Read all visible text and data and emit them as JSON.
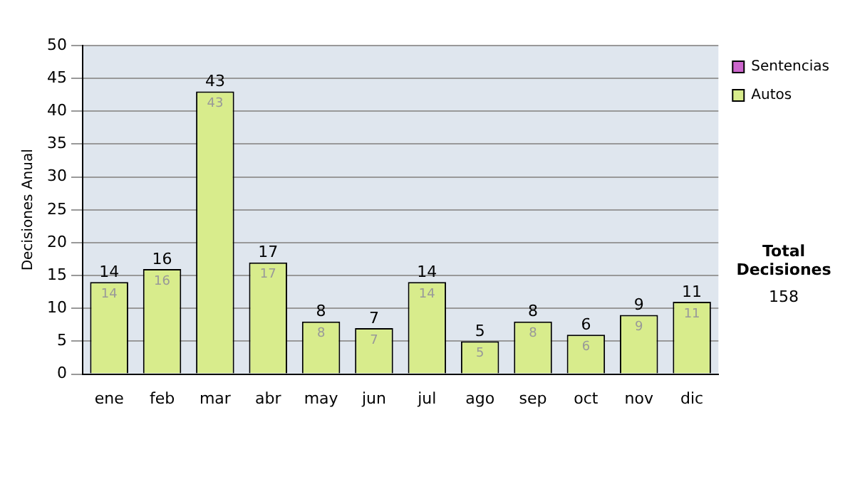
{
  "chart_data": {
    "type": "bar",
    "ylabel": "Decisiones Anual",
    "categories": [
      "ene",
      "feb",
      "mar",
      "abr",
      "may",
      "jun",
      "jul",
      "ago",
      "sep",
      "oct",
      "nov",
      "dic"
    ],
    "series": [
      {
        "name": "Sentencias",
        "color": "#cc66cc",
        "values": [
          null,
          null,
          null,
          null,
          null,
          null,
          null,
          null,
          null,
          null,
          null,
          null
        ]
      },
      {
        "name": "Autos",
        "color": "#d8ec8c",
        "values": [
          14,
          16,
          43,
          17,
          8,
          7,
          14,
          5,
          8,
          6,
          9,
          11
        ]
      }
    ],
    "stacked": true,
    "totals": [
      "14",
      "16",
      "43",
      "17",
      "8",
      "7",
      "14",
      "5",
      "8",
      "6",
      "9",
      "11"
    ],
    "ylim": [
      0,
      50
    ],
    "yticks": [
      0,
      5,
      10,
      15,
      20,
      25,
      30,
      35,
      40,
      45,
      50
    ],
    "grid": "y",
    "legend": "right",
    "data_labels": true,
    "annotations": [
      "Total Decisiones",
      "158"
    ]
  }
}
